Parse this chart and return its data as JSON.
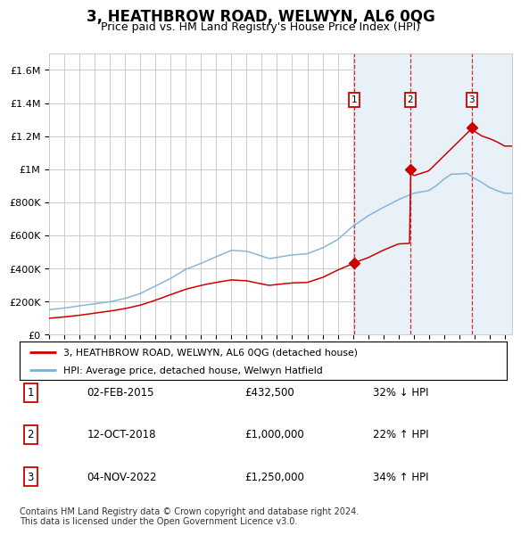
{
  "title": "3, HEATHBROW ROAD, WELWYN, AL6 0QG",
  "subtitle": "Price paid vs. HM Land Registry's House Price Index (HPI)",
  "ylim": [
    0,
    1700000
  ],
  "yticks": [
    0,
    200000,
    400000,
    600000,
    800000,
    1000000,
    1200000,
    1400000,
    1600000
  ],
  "ytick_labels": [
    "£0",
    "£200K",
    "£400K",
    "£600K",
    "£800K",
    "£1M",
    "£1.2M",
    "£1.4M",
    "£1.6M"
  ],
  "xlim_start": 1995.0,
  "xlim_end": 2025.5,
  "sale_dates": [
    2015.085,
    2018.78,
    2022.84
  ],
  "sale_prices": [
    432500,
    1000000,
    1250000
  ],
  "sale_labels": [
    "1",
    "2",
    "3"
  ],
  "sale_date_strings": [
    "02-FEB-2015",
    "12-OCT-2018",
    "04-NOV-2022"
  ],
  "sale_price_strings": [
    "£432,500",
    "£1,000,000",
    "£1,250,000"
  ],
  "sale_hpi_strings": [
    "32% ↓ HPI",
    "22% ↑ HPI",
    "34% ↑ HPI"
  ],
  "legend_red": "3, HEATHBROW ROAD, WELWYN, AL6 0QG (detached house)",
  "legend_blue": "HPI: Average price, detached house, Welwyn Hatfield",
  "footer": "Contains HM Land Registry data © Crown copyright and database right 2024.\nThis data is licensed under the Open Government Licence v3.0.",
  "red_color": "#cc0000",
  "blue_color": "#7bafd4",
  "shade_color": "#ddeeff",
  "grid_color": "#cccccc",
  "background_color": "#ffffff",
  "title_fontsize": 12,
  "subtitle_fontsize": 9,
  "tick_fontsize": 8
}
